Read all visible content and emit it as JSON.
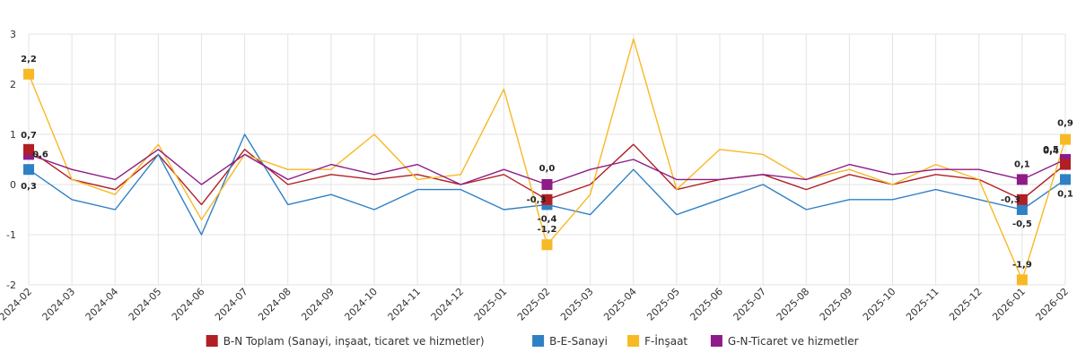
{
  "chart_data": {
    "type": "line",
    "title": "",
    "xlabel": "",
    "ylabel": "",
    "ylim": [
      -2,
      3
    ],
    "yticks": [
      -2,
      -1,
      0,
      1,
      2,
      3
    ],
    "ytick_labels": [
      "-2",
      "-1",
      "0",
      "1",
      "2",
      "3"
    ],
    "grid": true,
    "legend_position": "bottom-center",
    "categories": [
      "2024-02",
      "2024-03",
      "2024-04",
      "2024-05",
      "2024-06",
      "2024-07",
      "2024-08",
      "2024-09",
      "2024-10",
      "2024-11",
      "2024-12",
      "2025-01",
      "2025-02",
      "2025-03",
      "2025-04",
      "2025-05",
      "2025-06",
      "2025-07",
      "2025-08",
      "2025-09",
      "2025-10",
      "2025-11",
      "2025-12",
      "2026-01",
      "2026-02"
    ],
    "series": [
      {
        "name": "B-N Toplam (Sanayi, inşaat, ticaret ve hizmetler)",
        "color": "#b11f24",
        "values": [
          0.7,
          0.1,
          -0.1,
          0.6,
          -0.4,
          0.7,
          0.0,
          0.2,
          0.1,
          0.2,
          0.0,
          0.2,
          -0.3,
          0.0,
          0.8,
          -0.1,
          0.1,
          0.2,
          -0.1,
          0.2,
          0.0,
          0.2,
          0.1,
          -0.3,
          0.4
        ]
      },
      {
        "name": "B-E-Sanayi",
        "color": "#2f80c4",
        "values": [
          0.3,
          -0.3,
          -0.5,
          0.6,
          -1.0,
          1.0,
          -0.4,
          -0.2,
          -0.5,
          -0.1,
          -0.1,
          -0.5,
          -0.4,
          -0.6,
          0.3,
          -0.6,
          -0.3,
          0.0,
          -0.5,
          -0.3,
          -0.3,
          -0.1,
          -0.3,
          -0.5,
          0.1
        ]
      },
      {
        "name": "F-İnşaat",
        "color": "#f7b924",
        "values": [
          2.2,
          0.1,
          -0.2,
          0.8,
          -0.7,
          0.6,
          0.3,
          0.3,
          1.0,
          0.1,
          0.2,
          1.9,
          -1.2,
          -0.2,
          2.9,
          -0.1,
          0.7,
          0.6,
          0.1,
          0.3,
          0.0,
          0.4,
          0.1,
          -1.9,
          0.9
        ]
      },
      {
        "name": "G-N-Ticaret ve hizmetler",
        "color": "#8e1b87",
        "values": [
          0.6,
          0.3,
          0.1,
          0.7,
          0.0,
          0.6,
          0.1,
          0.4,
          0.2,
          0.4,
          0.0,
          0.3,
          0.0,
          0.3,
          0.5,
          0.1,
          0.1,
          0.2,
          0.1,
          0.4,
          0.2,
          0.3,
          0.3,
          0.1,
          0.5
        ]
      }
    ],
    "annotations": [
      {
        "series": 0,
        "index": 0,
        "text": "0,7"
      },
      {
        "series": 1,
        "index": 0,
        "text": "0,3"
      },
      {
        "series": 2,
        "index": 0,
        "text": "2,2"
      },
      {
        "series": 3,
        "index": 0,
        "text": "0,6"
      },
      {
        "series": 0,
        "index": 12,
        "text": "-0,3"
      },
      {
        "series": 1,
        "index": 12,
        "text": "-0,4"
      },
      {
        "series": 2,
        "index": 12,
        "text": "-1,2"
      },
      {
        "series": 3,
        "index": 12,
        "text": "0,0"
      },
      {
        "series": 0,
        "index": 23,
        "text": "-0,3"
      },
      {
        "series": 1,
        "index": 23,
        "text": "-0,5"
      },
      {
        "series": 2,
        "index": 23,
        "text": "-1,9"
      },
      {
        "series": 3,
        "index": 23,
        "text": "0,1"
      },
      {
        "series": 0,
        "index": 24,
        "text": "0,4"
      },
      {
        "series": 1,
        "index": 24,
        "text": "0,1"
      },
      {
        "series": 2,
        "index": 24,
        "text": "0,9"
      },
      {
        "series": 3,
        "index": 24,
        "text": "0,5"
      }
    ]
  }
}
